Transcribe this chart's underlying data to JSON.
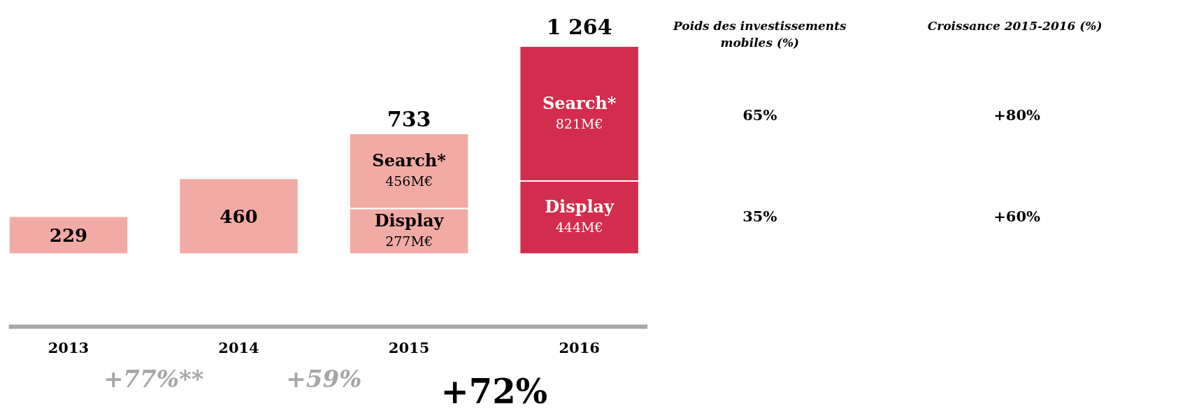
{
  "chart_data": {
    "type": "bar",
    "stacked": true,
    "categories": [
      "2013",
      "2014",
      "2015",
      "2016"
    ],
    "series": [
      {
        "values": [
          229,
          460,
          null,
          null
        ],
        "colors": [
          "#f2aba4",
          "#f2aba4",
          "#f2aba4",
          "#d22d4c"
        ],
        "value_labels": [
          "229",
          "460",
          null,
          null
        ]
      },
      {
        "name": "Display",
        "values": [
          null,
          null,
          277,
          444
        ],
        "colors": [
          "#f2aba4",
          "#f2aba4",
          "#f2aba4",
          "#d22d4c"
        ],
        "value_labels": [
          null,
          null,
          "277M€",
          "444M€"
        ]
      },
      {
        "name": "Search*",
        "values": [
          null,
          null,
          456,
          821
        ],
        "colors": [
          "#f2aba4",
          "#f2aba4",
          "#f2aba4",
          "#d22d4c"
        ],
        "value_labels": [
          null,
          null,
          "456M€",
          "821M€"
        ]
      }
    ],
    "totals": [
      null,
      null,
      "733",
      "1 264"
    ],
    "annotations": [
      "Poids des investissements\nmobiles (%)",
      "Croissance  2015-2016 (%)",
      "65%",
      "+80%",
      "35%",
      "+60%",
      "+77%**",
      "+59%",
      "+72%"
    ]
  }
}
